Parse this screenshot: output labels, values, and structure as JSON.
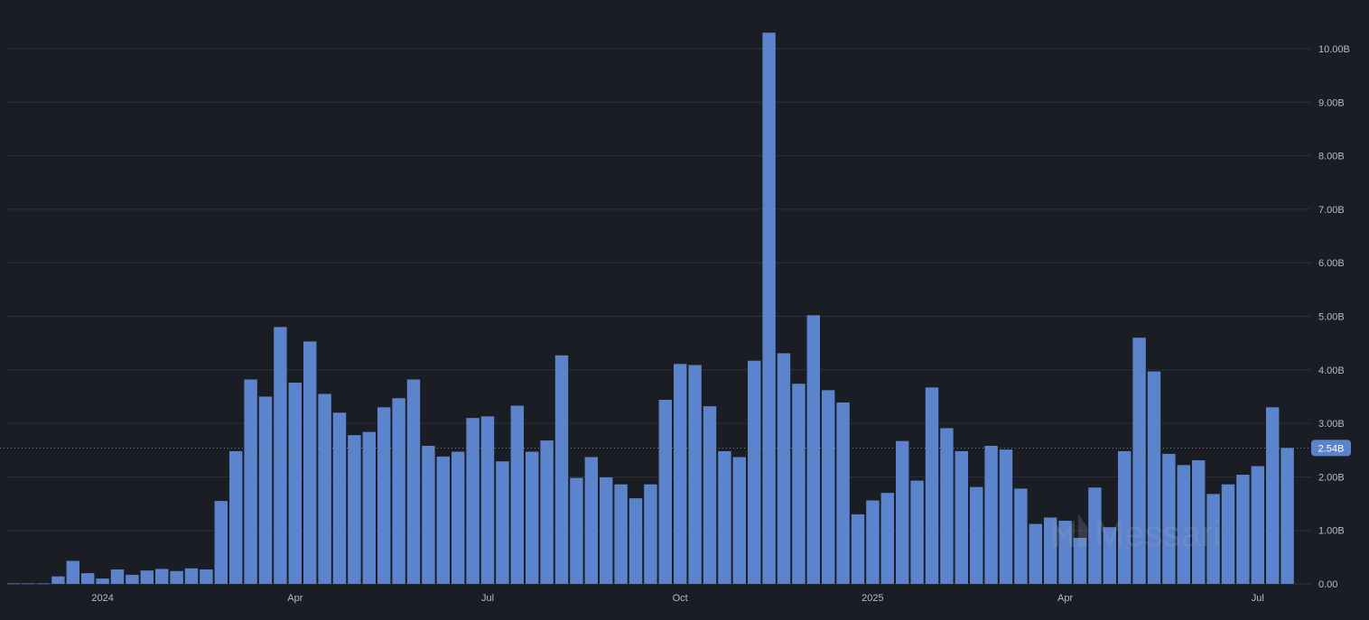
{
  "chart_data": {
    "type": "bar",
    "bar_color": "#5b84cc",
    "background": "#1b1d24",
    "grid_color": "#2e313a",
    "ylim": [
      0,
      10.4
    ],
    "y_ticks": [
      {
        "value": 0,
        "label": "0.00"
      },
      {
        "value": 1,
        "label": "1.00B"
      },
      {
        "value": 2,
        "label": "2.00B"
      },
      {
        "value": 3,
        "label": "3.00B"
      },
      {
        "value": 4,
        "label": "4.00B"
      },
      {
        "value": 5,
        "label": "5.00B"
      },
      {
        "value": 6,
        "label": "6.00B"
      },
      {
        "value": 7,
        "label": "7.00B"
      },
      {
        "value": 8,
        "label": "8.00B"
      },
      {
        "value": 9,
        "label": "9.00B"
      },
      {
        "value": 10,
        "label": "10.00B"
      }
    ],
    "x_ticks": [
      {
        "index": 6,
        "label": "2024"
      },
      {
        "index": 19,
        "label": "Apr"
      },
      {
        "index": 32,
        "label": "Jul"
      },
      {
        "index": 45,
        "label": "Oct"
      },
      {
        "index": 58,
        "label": "2025"
      },
      {
        "index": 71,
        "label": "Apr"
      },
      {
        "index": 84,
        "label": "Jul"
      }
    ],
    "unit": "B",
    "values": [
      0.01,
      0.01,
      0.01,
      0.14,
      0.43,
      0.2,
      0.1,
      0.27,
      0.17,
      0.25,
      0.28,
      0.24,
      0.29,
      0.27,
      1.55,
      2.48,
      3.82,
      3.5,
      4.8,
      3.76,
      4.53,
      3.55,
      3.2,
      2.78,
      2.84,
      3.3,
      3.47,
      3.82,
      2.58,
      2.38,
      2.47,
      3.1,
      3.13,
      2.29,
      3.33,
      2.47,
      2.68,
      4.27,
      1.98,
      2.37,
      1.99,
      1.86,
      1.6,
      1.86,
      3.44,
      4.11,
      4.09,
      3.32,
      2.48,
      2.37,
      4.17,
      10.3,
      4.31,
      3.74,
      5.02,
      3.62,
      3.39,
      1.3,
      1.56,
      1.7,
      2.67,
      1.93,
      3.67,
      2.91,
      2.48,
      1.81,
      2.58,
      2.51,
      1.78,
      1.12,
      1.24,
      1.18,
      0.86,
      1.8,
      1.06,
      2.48,
      4.6,
      3.97,
      2.43,
      2.22,
      2.31,
      1.68,
      1.86,
      2.04,
      2.2,
      3.3,
      2.54
    ],
    "last_value": 2.54,
    "last_value_label": "2.54B",
    "watermark": "Messari"
  }
}
